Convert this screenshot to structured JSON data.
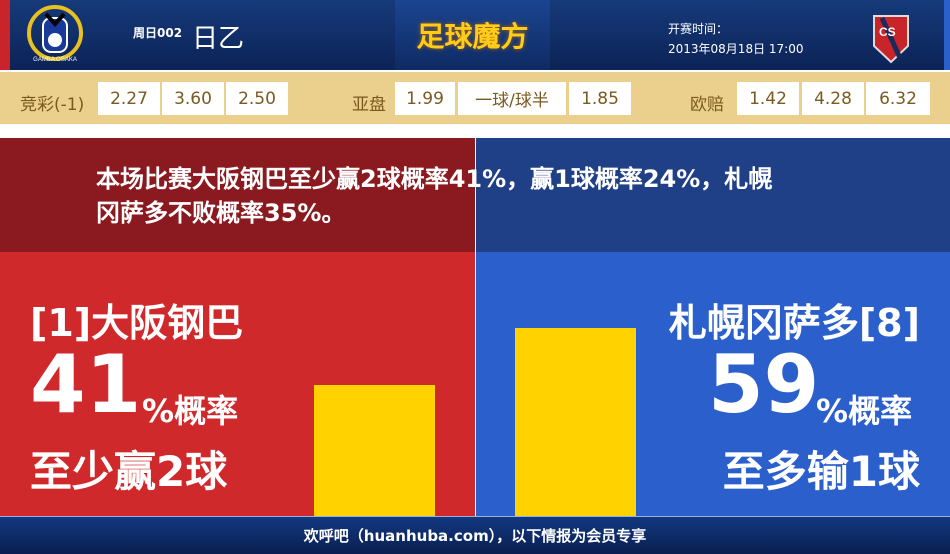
{
  "header": {
    "round": "周日002",
    "league": "日乙",
    "brand": "足球魔方",
    "kickoff_label": "开赛时间：",
    "kickoff_time": "2013年08月18日 17:00",
    "home_logo_text": "GAMBA OSAKA",
    "away_logo_text": "CS"
  },
  "odds": {
    "jingcai": {
      "label": "竞彩(-1)",
      "values": [
        "2.27",
        "3.60",
        "2.50"
      ]
    },
    "yapan": {
      "label": "亚盘",
      "values": [
        "1.99",
        "一球/球半",
        "1.85"
      ]
    },
    "oupei": {
      "label": "欧赔",
      "values": [
        "1.42",
        "4.28",
        "6.32"
      ]
    }
  },
  "summary": "本场比赛大阪钢巴至少赢2球概率41%，赢1球概率24%，札幌冈萨多不败概率35%。",
  "home": {
    "name": "[1]大阪钢巴",
    "percent": "41",
    "percent_suffix": "%概率",
    "outcome": "至少赢2球",
    "value": 41
  },
  "away": {
    "name": "札幌冈萨多[8]",
    "percent": "59",
    "percent_suffix": "%概率",
    "outcome": "至多输1球",
    "value": 59
  },
  "footer": "欢呼吧（huanhuba.com），以下情报为会员专享",
  "colors": {
    "home": "#d0292c",
    "away": "#2a5fcc",
    "bar": "#ffd200"
  }
}
